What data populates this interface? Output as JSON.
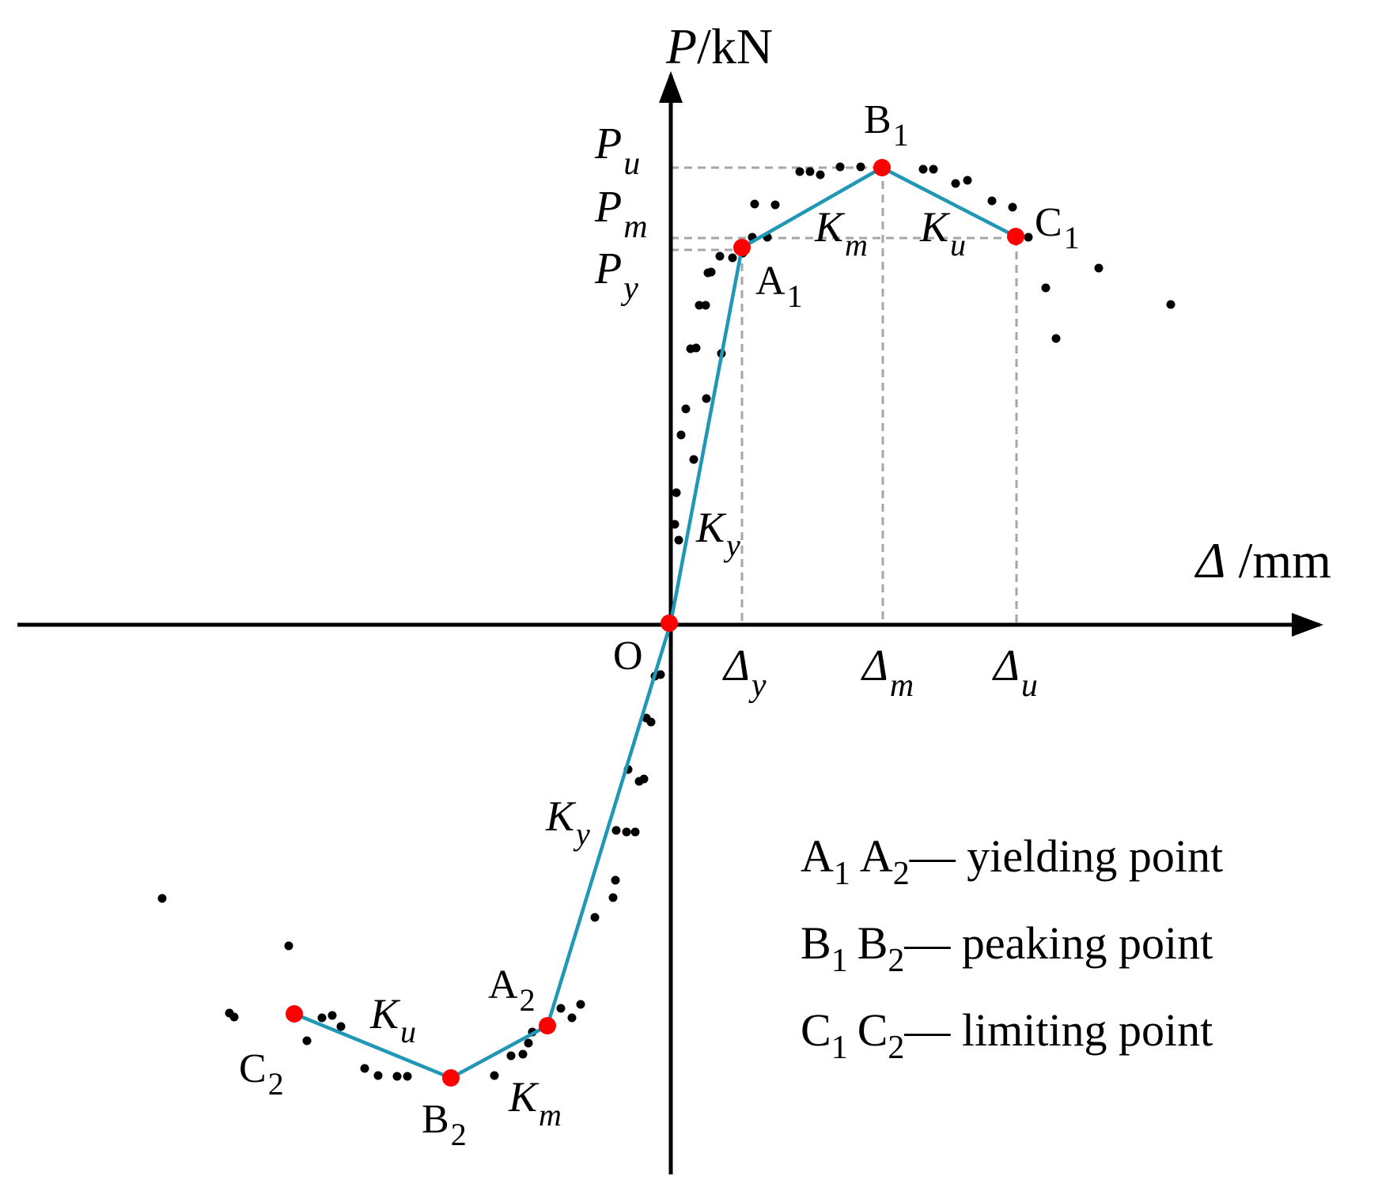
{
  "axes": {
    "y_label_var": "P",
    "y_label_unit": "/kN",
    "x_label_var": "Δ",
    "x_label_unit": " /mm",
    "origin": "O"
  },
  "axis_ticks": {
    "y": [
      {
        "base": "P",
        "sub": "u"
      },
      {
        "base": "P",
        "sub": "m"
      },
      {
        "base": "P",
        "sub": "y"
      }
    ],
    "x": [
      {
        "base": "Δ",
        "sub": "y"
      },
      {
        "base": "Δ",
        "sub": "m"
      },
      {
        "base": "Δ",
        "sub": "u"
      }
    ]
  },
  "key_points": {
    "A1": {
      "base": "A",
      "sub": "1"
    },
    "B1": {
      "base": "B",
      "sub": "1"
    },
    "C1": {
      "base": "C",
      "sub": "1"
    },
    "A2": {
      "base": "A",
      "sub": "2"
    },
    "B2": {
      "base": "B",
      "sub": "2"
    },
    "C2": {
      "base": "C",
      "sub": "2"
    }
  },
  "stiffness_labels": {
    "ky_pos": {
      "base": "K",
      "sub": "y"
    },
    "km_pos": {
      "base": "K",
      "sub": "m"
    },
    "ku_pos": {
      "base": "K",
      "sub": "u"
    },
    "ky_neg": {
      "base": "K",
      "sub": "y"
    },
    "km_neg": {
      "base": "K",
      "sub": "m"
    },
    "ku_neg": {
      "base": "K",
      "sub": "u"
    }
  },
  "legend": [
    {
      "p1": "A",
      "s1": "1",
      "p2": "A",
      "s2": "2",
      "dash": "—",
      "text": " yielding point"
    },
    {
      "p1": "B",
      "s1": "1",
      "p2": "B",
      "s2": "2",
      "dash": "—",
      "text": " peaking point"
    },
    {
      "p1": "C",
      "s1": "1",
      "p2": "C",
      "s2": "2",
      "dash": "—",
      "text": " limiting point"
    }
  ],
  "colors": {
    "skeleton_line": "#1f97b5",
    "key_point": "#ff0000",
    "scatter": "#000000",
    "guide": "#a6a6a6",
    "axis": "#000000"
  }
}
